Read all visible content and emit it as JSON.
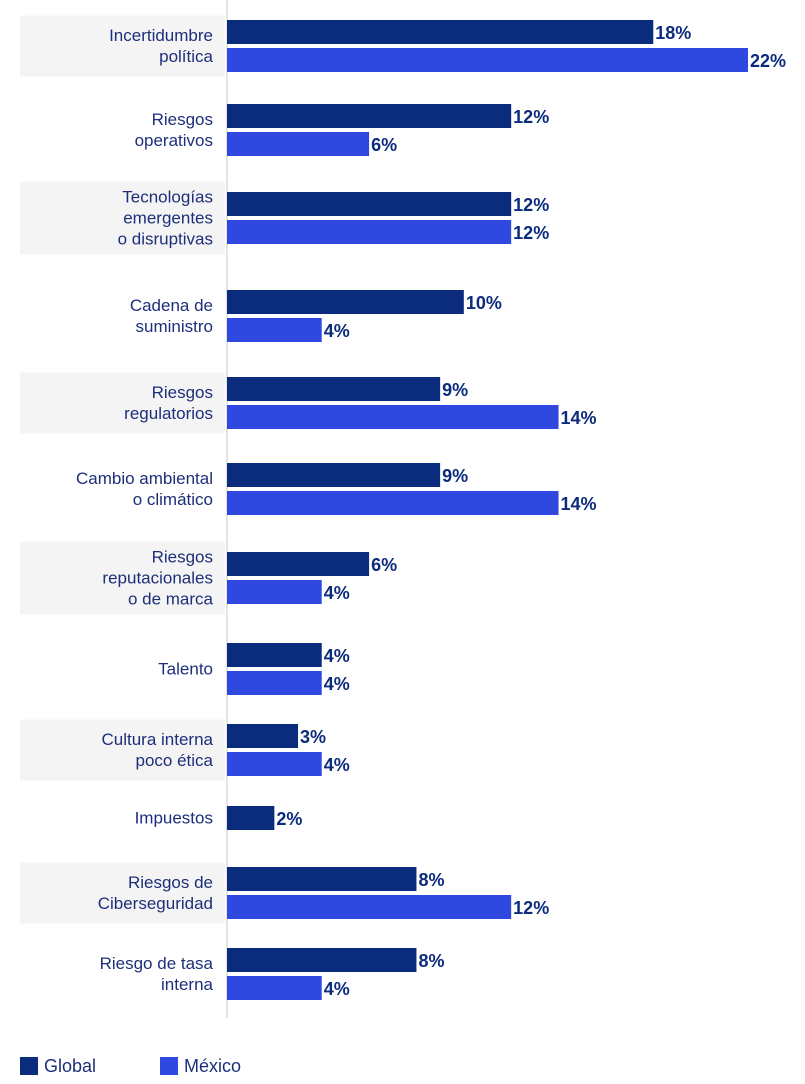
{
  "chart_data": {
    "type": "bar",
    "orientation": "horizontal",
    "categories": [
      "Incertidumbre\npolítica",
      "Riesgos\noperativos",
      "Tecnologías\nemergentes\no disruptivas",
      "Cadena de\nsuministro",
      "Riesgos\nregulatorios",
      "Cambio ambiental\no climático",
      "Riesgos\nreputacionales\no de marca",
      "Talento",
      "Cultura interna\npoco ética",
      "Impuestos",
      "Riesgos de\nCiberseguridad",
      "Riesgo de tasa\ninterna"
    ],
    "series": [
      {
        "name": "Global",
        "color": "#0b2b7c",
        "values": [
          18,
          12,
          12,
          10,
          9,
          9,
          6,
          4,
          3,
          2,
          8,
          8
        ],
        "value_labels": [
          "18%",
          "12%",
          "12%",
          "10%",
          "9%",
          "9%",
          "6%",
          "4%",
          "3%",
          "2%",
          "8%",
          "8%"
        ]
      },
      {
        "name": "México",
        "color": "#2f48e0",
        "values": [
          22,
          6,
          12,
          4,
          14,
          14,
          4,
          4,
          4,
          null,
          12,
          4
        ],
        "value_labels": [
          "22%",
          "6%",
          "12%",
          "4%",
          "14%",
          "14%",
          "4%",
          "4%",
          "4%",
          null,
          "12%",
          "4%"
        ]
      }
    ],
    "xlim": [
      0,
      22
    ]
  }
}
